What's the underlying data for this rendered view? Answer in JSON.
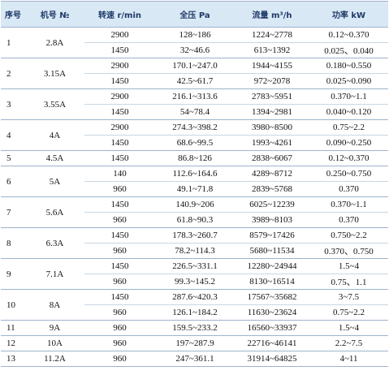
{
  "table": {
    "header": [
      "序号",
      "机号 №",
      "转速 r/min",
      "全压 Pa",
      "流量 m³/h",
      "功率 kW"
    ],
    "rows": [
      {
        "no": "1",
        "model": "2.8A",
        "sub": [
          [
            "2900",
            "128~186",
            "1224~2778",
            "0.12~0.370"
          ],
          [
            "1450",
            "32~46.6",
            "613~1392",
            "0.025、0.040"
          ]
        ]
      },
      {
        "no": "2",
        "model": "3.15A",
        "sub": [
          [
            "2900",
            "170.1~247.0",
            "1944~4155",
            "0.180~0.550"
          ],
          [
            "1450",
            "42.5~61.7",
            "972~2078",
            "0.025~0.090"
          ]
        ]
      },
      {
        "no": "3",
        "model": "3.55A",
        "sub": [
          [
            "2900",
            "216.1~313.6",
            "2783~5951",
            "0.370~1.1"
          ],
          [
            "1450",
            "54~78.4",
            "1394~2981",
            "0.040~0.120"
          ]
        ]
      },
      {
        "no": "4",
        "model": "4A",
        "sub": [
          [
            "2900",
            "274.3~398.2",
            "3980~8500",
            "0.75~2.2"
          ],
          [
            "1450",
            "68.6~99.5",
            "1993~4261",
            "0.090~0.250"
          ]
        ]
      },
      {
        "no": "5",
        "model": "4.5A",
        "sub": [
          [
            "1450",
            "86.8~126",
            "2838~6067",
            "0.12~0.370"
          ]
        ]
      },
      {
        "no": "6",
        "model": "5A",
        "sub": [
          [
            "140",
            "112.6~164.6",
            "4289~8712",
            "0.250~0.750"
          ],
          [
            "960",
            "49.1~71.8",
            "2839~5768",
            "0.370"
          ]
        ]
      },
      {
        "no": "7",
        "model": "5.6A",
        "sub": [
          [
            "1450",
            "140.9~206",
            "6025~12239",
            "0.370~1.1"
          ],
          [
            "960",
            "61.8~90.3",
            "3989~8103",
            "0.370"
          ]
        ]
      },
      {
        "no": "8",
        "model": "6.3A",
        "sub": [
          [
            "1450",
            "178.3~260.7",
            "8579~17426",
            "0.750~2.2"
          ],
          [
            "960",
            "78.2~114.3",
            "5680~11534",
            "0.370、0.750"
          ]
        ]
      },
      {
        "no": "9",
        "model": "7.1A",
        "sub": [
          [
            "1450",
            "226.5~331.1",
            "12280~24944",
            "1.5~4"
          ],
          [
            "960",
            "99.3~145.2",
            "8130~16514",
            "0.75、1.1"
          ]
        ]
      },
      {
        "no": "10",
        "model": "8A",
        "sub": [
          [
            "1450",
            "287.6~420.3",
            "17567~35682",
            "3~7.5"
          ],
          [
            "960",
            "126.1~184.2",
            "11630~23624",
            "0.75~2.2"
          ]
        ]
      },
      {
        "no": "11",
        "model": "9A",
        "sub": [
          [
            "960",
            "159.5~233.2",
            "16560~33937",
            "1.5~4"
          ]
        ]
      },
      {
        "no": "12",
        "model": "10A",
        "sub": [
          [
            "960",
            "197~287.9",
            "22716~46141",
            "2.2~7.5"
          ]
        ]
      },
      {
        "no": "13",
        "model": "11.2A",
        "sub": [
          [
            "960",
            "247~361.1",
            "31914~64825",
            "4~11"
          ]
        ]
      }
    ]
  }
}
